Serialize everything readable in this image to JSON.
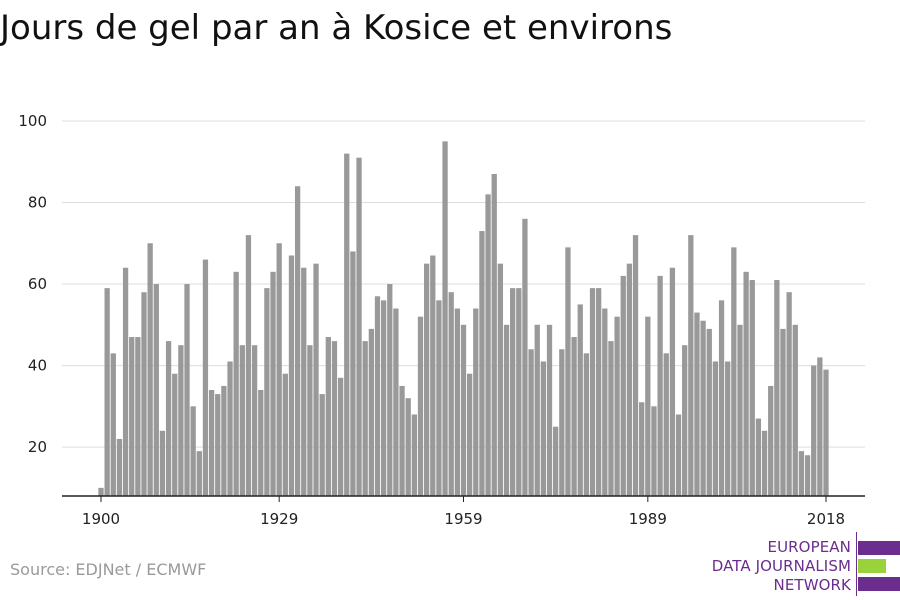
{
  "chart_data": {
    "type": "bar",
    "title": "Jours de gel par an à Kosice et environs",
    "xlabel": "",
    "ylabel": "",
    "x": [
      1900,
      1901,
      1902,
      1903,
      1904,
      1905,
      1906,
      1907,
      1908,
      1909,
      1910,
      1911,
      1912,
      1913,
      1914,
      1915,
      1916,
      1917,
      1918,
      1919,
      1920,
      1921,
      1922,
      1923,
      1924,
      1925,
      1926,
      1927,
      1928,
      1929,
      1930,
      1931,
      1932,
      1933,
      1934,
      1935,
      1936,
      1937,
      1938,
      1939,
      1940,
      1941,
      1942,
      1943,
      1944,
      1945,
      1946,
      1947,
      1948,
      1949,
      1950,
      1951,
      1952,
      1953,
      1954,
      1955,
      1956,
      1957,
      1958,
      1959,
      1960,
      1961,
      1962,
      1963,
      1964,
      1965,
      1966,
      1967,
      1968,
      1969,
      1970,
      1971,
      1972,
      1973,
      1974,
      1975,
      1976,
      1977,
      1978,
      1979,
      1980,
      1981,
      1982,
      1983,
      1984,
      1985,
      1986,
      1987,
      1988,
      1989,
      1990,
      1991,
      1992,
      1993,
      1994,
      1995,
      1996,
      1997,
      1998,
      1999,
      2000,
      2001,
      2002,
      2003,
      2004,
      2005,
      2006,
      2007,
      2008,
      2009,
      2010,
      2011,
      2012,
      2013,
      2014,
      2015,
      2016,
      2017,
      2018
    ],
    "values": [
      10,
      59,
      43,
      22,
      64,
      47,
      47,
      58,
      70,
      60,
      24,
      46,
      38,
      45,
      60,
      30,
      19,
      66,
      34,
      33,
      35,
      41,
      63,
      45,
      72,
      45,
      34,
      59,
      63,
      70,
      38,
      67,
      84,
      64,
      45,
      65,
      33,
      47,
      46,
      37,
      92,
      68,
      91,
      46,
      49,
      57,
      56,
      60,
      54,
      35,
      32,
      28,
      52,
      65,
      67,
      56,
      95,
      58,
      54,
      50,
      38,
      54,
      73,
      82,
      87,
      65,
      50,
      59,
      59,
      76,
      44,
      50,
      41,
      50,
      25,
      44,
      69,
      47,
      55,
      43,
      59,
      59,
      54,
      46,
      52,
      62,
      65,
      72,
      31,
      52,
      30,
      62,
      43,
      64,
      28,
      45,
      72,
      53,
      51,
      49,
      41,
      56,
      41,
      69,
      50,
      63,
      61,
      27,
      24,
      35,
      61,
      49,
      58,
      50,
      19,
      18,
      40,
      42,
      39
    ],
    "ylim": [
      8,
      100
    ],
    "yticks": [
      20,
      40,
      60,
      80,
      100
    ],
    "xticks": [
      1900,
      1929,
      1959,
      1989,
      2018
    ],
    "grid": true,
    "colors": {
      "bar": "#999999",
      "grid": "#dddddd",
      "axis": "#222222"
    }
  },
  "footer": {
    "source": "Source: EDJNet / ECMWF"
  },
  "logo": {
    "line1": "EUROPEAN",
    "line2": "DATA JOURNALISM",
    "line3": "NETWORK",
    "colors": {
      "purple": "#6b2d8e",
      "green": "#9ad23c"
    }
  }
}
